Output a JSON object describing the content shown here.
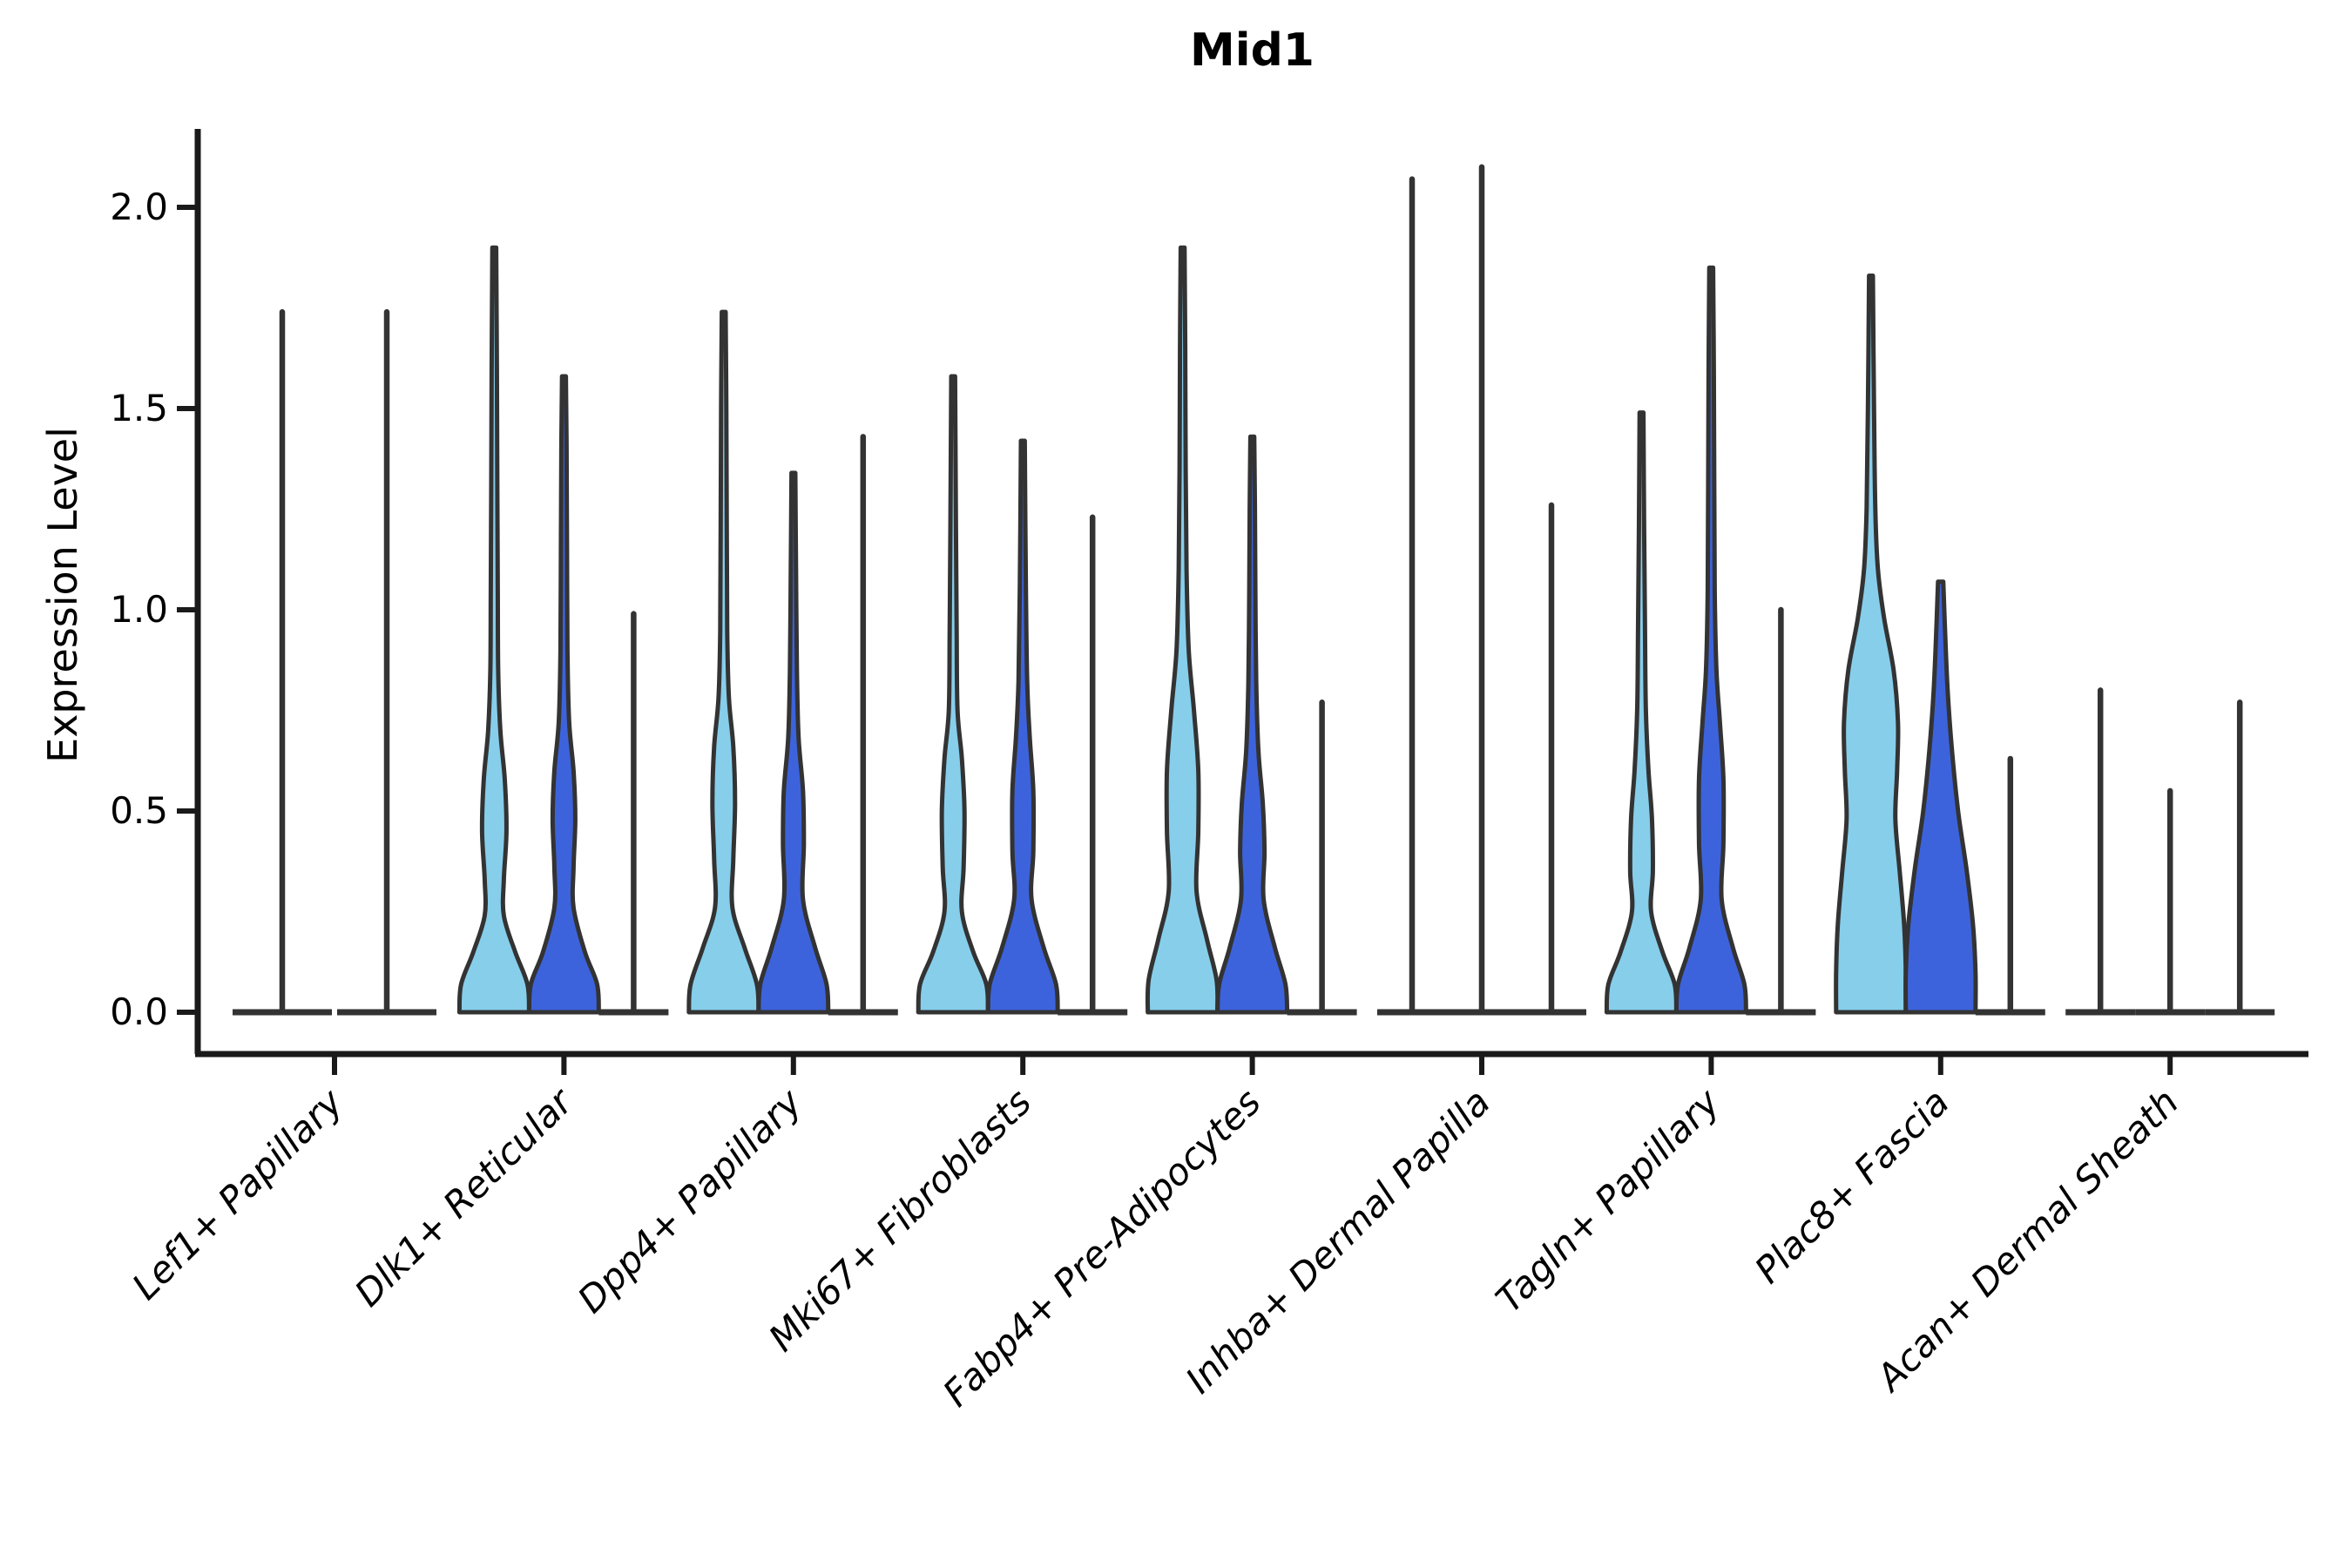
{
  "chart_data": {
    "type": "violin",
    "title": "Mid1",
    "ylabel": "Expression Level",
    "xlabel": "",
    "ylim": [
      0,
      2.2
    ],
    "yticks": [
      0.0,
      0.5,
      1.0,
      1.5,
      2.0
    ],
    "ytick_labels": [
      "0.0",
      "0.5",
      "1.0",
      "1.5",
      "2.0"
    ],
    "grid": false,
    "legend_position": "none",
    "x_tick_label_rotation_deg": 45,
    "split_colors": {
      "light": "#87CEEB",
      "dark": "#3D63DC",
      "line": "#333333"
    },
    "axis_color": "#1a1a1a",
    "categories": [
      {
        "label": "Lef1+ Papillary",
        "violins": [
          {
            "split": "light",
            "style": "line",
            "max": 1.74
          },
          {
            "split": "dark",
            "style": "line",
            "max": 1.74
          }
        ]
      },
      {
        "label": "Dlk1+ Reticular",
        "violins": [
          {
            "split": "light",
            "style": "filled",
            "max": 1.9,
            "profile": [
              [
                0,
                40
              ],
              [
                0.07,
                38
              ],
              [
                0.15,
                24
              ],
              [
                0.24,
                11
              ],
              [
                0.33,
                11
              ],
              [
                0.45,
                14
              ],
              [
                0.58,
                12
              ],
              [
                0.7,
                7
              ],
              [
                0.85,
                4.5
              ],
              [
                1.05,
                4
              ],
              [
                1.3,
                3.5
              ],
              [
                1.6,
                3
              ],
              [
                1.9,
                2.2
              ]
            ]
          },
          {
            "split": "dark",
            "style": "filled",
            "max": 1.58,
            "profile": [
              [
                0,
                40
              ],
              [
                0.07,
                38
              ],
              [
                0.15,
                24
              ],
              [
                0.26,
                11
              ],
              [
                0.36,
                11
              ],
              [
                0.48,
                13
              ],
              [
                0.6,
                11
              ],
              [
                0.72,
                6
              ],
              [
                0.9,
                4
              ],
              [
                1.15,
                3.5
              ],
              [
                1.4,
                3
              ],
              [
                1.58,
                2.2
              ]
            ]
          },
          {
            "split": "line",
            "style": "line",
            "max": 0.99
          }
        ]
      },
      {
        "label": "Dpp4+ Papillary",
        "violins": [
          {
            "split": "light",
            "style": "filled",
            "max": 1.74,
            "profile": [
              [
                0,
                40
              ],
              [
                0.07,
                38
              ],
              [
                0.16,
                24
              ],
              [
                0.26,
                10
              ],
              [
                0.38,
                11
              ],
              [
                0.52,
                13
              ],
              [
                0.66,
                11
              ],
              [
                0.78,
                6
              ],
              [
                0.95,
                4
              ],
              [
                1.2,
                3.5
              ],
              [
                1.5,
                3
              ],
              [
                1.74,
                2.2
              ]
            ]
          },
          {
            "split": "dark",
            "style": "filled",
            "max": 1.34,
            "profile": [
              [
                0,
                40
              ],
              [
                0.07,
                38
              ],
              [
                0.16,
                25
              ],
              [
                0.28,
                11
              ],
              [
                0.42,
                12
              ],
              [
                0.55,
                11
              ],
              [
                0.68,
                6
              ],
              [
                0.85,
                4
              ],
              [
                1.1,
                3
              ],
              [
                1.34,
                2.2
              ]
            ]
          },
          {
            "split": "line",
            "style": "line",
            "max": 1.43
          }
        ]
      },
      {
        "label": "Mki67+ Fibroblasts",
        "violins": [
          {
            "split": "light",
            "style": "filled",
            "max": 1.58,
            "profile": [
              [
                0,
                40
              ],
              [
                0.07,
                38
              ],
              [
                0.15,
                23
              ],
              [
                0.25,
                10
              ],
              [
                0.36,
                12
              ],
              [
                0.5,
                13
              ],
              [
                0.63,
                10
              ],
              [
                0.75,
                5
              ],
              [
                0.95,
                4
              ],
              [
                1.2,
                3.2
              ],
              [
                1.58,
                2.2
              ]
            ]
          },
          {
            "split": "dark",
            "style": "filled",
            "max": 1.42,
            "profile": [
              [
                0,
                40
              ],
              [
                0.07,
                38
              ],
              [
                0.16,
                24
              ],
              [
                0.28,
                10
              ],
              [
                0.4,
                12
              ],
              [
                0.55,
                12
              ],
              [
                0.68,
                8
              ],
              [
                0.82,
                5
              ],
              [
                1.05,
                3.5
              ],
              [
                1.42,
                2.2
              ]
            ]
          },
          {
            "split": "line",
            "style": "line",
            "max": 1.23
          }
        ]
      },
      {
        "label": "Fabp4+ Pre-Adipocytes",
        "violins": [
          {
            "split": "light",
            "style": "filled",
            "max": 1.9,
            "profile": [
              [
                0,
                40
              ],
              [
                0.08,
                39
              ],
              [
                0.18,
                28
              ],
              [
                0.3,
                16
              ],
              [
                0.45,
                18
              ],
              [
                0.6,
                18
              ],
              [
                0.75,
                13
              ],
              [
                0.9,
                7
              ],
              [
                1.1,
                4.5
              ],
              [
                1.35,
                3.5
              ],
              [
                1.65,
                3
              ],
              [
                1.9,
                2.2
              ]
            ]
          },
          {
            "split": "dark",
            "style": "filled",
            "max": 1.43,
            "profile": [
              [
                0,
                40
              ],
              [
                0.07,
                38
              ],
              [
                0.16,
                26
              ],
              [
                0.28,
                13
              ],
              [
                0.4,
                14
              ],
              [
                0.52,
                12
              ],
              [
                0.65,
                7
              ],
              [
                0.82,
                4.5
              ],
              [
                1.05,
                3.5
              ],
              [
                1.25,
                3
              ],
              [
                1.43,
                2.2
              ]
            ]
          },
          {
            "split": "line",
            "style": "line",
            "max": 0.77
          }
        ]
      },
      {
        "label": "Inhba+ Dermal Papilla",
        "violins": [
          {
            "split": "light",
            "style": "line",
            "max": 2.07
          },
          {
            "split": "dark",
            "style": "line",
            "max": 2.1
          },
          {
            "split": "line",
            "style": "line",
            "max": 1.26
          }
        ]
      },
      {
        "label": "Tagln+ Papillary",
        "violins": [
          {
            "split": "light",
            "style": "filled",
            "max": 1.49,
            "profile": [
              [
                0,
                40
              ],
              [
                0.07,
                38
              ],
              [
                0.15,
                24
              ],
              [
                0.25,
                11
              ],
              [
                0.35,
                13
              ],
              [
                0.48,
                12
              ],
              [
                0.6,
                8
              ],
              [
                0.75,
                5
              ],
              [
                0.95,
                4
              ],
              [
                1.2,
                3
              ],
              [
                1.49,
                2.2
              ]
            ]
          },
          {
            "split": "dark",
            "style": "filled",
            "max": 1.85,
            "profile": [
              [
                0,
                40
              ],
              [
                0.07,
                38
              ],
              [
                0.16,
                25
              ],
              [
                0.28,
                12
              ],
              [
                0.42,
                14
              ],
              [
                0.58,
                14
              ],
              [
                0.72,
                10
              ],
              [
                0.85,
                6
              ],
              [
                1.05,
                4
              ],
              [
                1.3,
                3.5
              ],
              [
                1.6,
                3
              ],
              [
                1.85,
                2.2
              ]
            ]
          },
          {
            "split": "line",
            "style": "line",
            "max": 1.0
          }
        ]
      },
      {
        "label": "Plac8+ Fascia",
        "violins": [
          {
            "split": "light",
            "style": "filled",
            "max": 1.83,
            "profile": [
              [
                0,
                40
              ],
              [
                0.1,
                40
              ],
              [
                0.22,
                38
              ],
              [
                0.35,
                33
              ],
              [
                0.48,
                28
              ],
              [
                0.6,
                30
              ],
              [
                0.72,
                31
              ],
              [
                0.85,
                26
              ],
              [
                0.98,
                15
              ],
              [
                1.1,
                8
              ],
              [
                1.25,
                5
              ],
              [
                1.5,
                3.5
              ],
              [
                1.83,
                2.2
              ]
            ]
          },
          {
            "split": "dark",
            "style": "filled",
            "max": 1.07,
            "profile": [
              [
                0,
                40
              ],
              [
                0.1,
                40
              ],
              [
                0.22,
                37
              ],
              [
                0.35,
                30
              ],
              [
                0.5,
                20
              ],
              [
                0.65,
                13
              ],
              [
                0.8,
                8
              ],
              [
                0.95,
                5
              ],
              [
                1.07,
                3
              ]
            ]
          },
          {
            "split": "line",
            "style": "line",
            "max": 0.63
          }
        ]
      },
      {
        "label": "Acan+ Dermal Sheath",
        "violins": [
          {
            "split": "light",
            "style": "line",
            "max": 0.8
          },
          {
            "split": "dark",
            "style": "line",
            "max": 0.55
          },
          {
            "split": "line",
            "style": "line",
            "max": 0.77
          }
        ]
      }
    ]
  }
}
